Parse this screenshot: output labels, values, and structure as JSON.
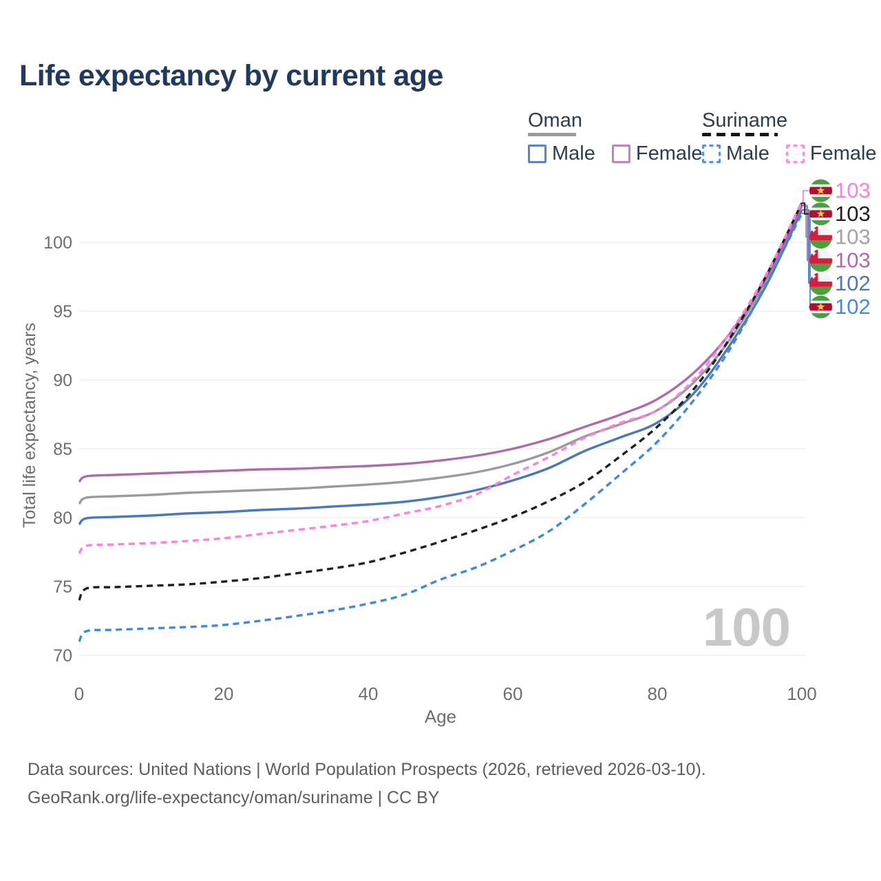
{
  "title": "Life expectancy by current age",
  "watermark": "100",
  "legend": {
    "groups": [
      {
        "label": "Oman",
        "line_style": "solid",
        "line_color": "#9b9b9b",
        "items": [
          {
            "label": "Male",
            "color": "#5b84c6",
            "style": "solid"
          },
          {
            "label": "Female",
            "color": "#c083bd",
            "style": "solid"
          }
        ]
      },
      {
        "label": "Suriname",
        "line_style": "dashed",
        "line_color": "#161616",
        "items": [
          {
            "label": "Male",
            "color": "#4d93f2",
            "style": "dashed"
          },
          {
            "label": "Female",
            "color": "#ff8ce2",
            "style": "dashed"
          }
        ]
      }
    ]
  },
  "chart_data": {
    "type": "line",
    "title": "Life expectancy by current age",
    "xlabel": "Age",
    "ylabel": "Total life expectancy, years",
    "xlim": [
      0,
      100
    ],
    "ylim": [
      68.5,
      103.5
    ],
    "xticks": [
      0,
      20,
      40,
      60,
      80,
      100
    ],
    "yticks": [
      70,
      75,
      80,
      85,
      90,
      95,
      100
    ],
    "grid": true,
    "legend_position": "top-right",
    "x": [
      0,
      1,
      5,
      10,
      15,
      20,
      25,
      30,
      35,
      40,
      45,
      50,
      55,
      60,
      65,
      70,
      75,
      80,
      85,
      90,
      95,
      100
    ],
    "series": [
      {
        "name": "Oman Both sexes",
        "country": "Oman",
        "sex": "Both",
        "color": "#9b9b9b",
        "dashed": false,
        "flag": "oman",
        "end_label": "103",
        "end_label_color": "#a3a3a3",
        "label_row": 2,
        "values": [
          81.0,
          81.45,
          81.55,
          81.65,
          81.8,
          81.9,
          82.0,
          82.1,
          82.25,
          82.4,
          82.6,
          82.9,
          83.3,
          83.9,
          84.75,
          85.9,
          86.8,
          87.8,
          89.8,
          92.9,
          97.2,
          102.75
        ]
      },
      {
        "name": "Oman Male",
        "country": "Oman",
        "sex": "Male",
        "color": "#4a77bd",
        "dashed": false,
        "flag": "oman",
        "end_label": "102",
        "end_label_color": "#4a77bd",
        "label_row": 4,
        "values": [
          79.5,
          79.95,
          80.05,
          80.15,
          80.3,
          80.4,
          80.55,
          80.65,
          80.8,
          80.95,
          81.15,
          81.5,
          82.0,
          82.7,
          83.6,
          84.85,
          85.85,
          86.9,
          89.0,
          92.5,
          96.8,
          102.35
        ]
      },
      {
        "name": "Oman Female",
        "country": "Oman",
        "sex": "Female",
        "color": "#ad6bae",
        "dashed": false,
        "flag": "oman",
        "end_label": "103",
        "end_label_color": "#b168ad",
        "label_row": 3,
        "values": [
          82.6,
          83.0,
          83.1,
          83.2,
          83.3,
          83.4,
          83.5,
          83.55,
          83.65,
          83.75,
          83.9,
          84.15,
          84.5,
          85.0,
          85.7,
          86.6,
          87.5,
          88.6,
          90.5,
          93.35,
          97.35,
          102.65
        ]
      },
      {
        "name": "Suriname Male",
        "country": "Suriname",
        "sex": "Male",
        "color": "#3c86f0",
        "dashed": true,
        "flag": "suriname",
        "end_label": "102",
        "end_label_color": "#4189f0",
        "label_row": 5,
        "values": [
          71.0,
          71.75,
          71.85,
          71.95,
          72.05,
          72.2,
          72.5,
          72.85,
          73.25,
          73.75,
          74.4,
          75.5,
          76.4,
          77.6,
          79.0,
          81.0,
          83.2,
          85.5,
          88.5,
          92.2,
          96.9,
          102.1
        ]
      },
      {
        "name": "Suriname Both sexes",
        "country": "Suriname",
        "sex": "Both",
        "color": "#202020",
        "dashed": true,
        "flag": "suriname",
        "end_label": "103",
        "end_label_color": "#202020",
        "label_row": 1,
        "values": [
          74.0,
          74.85,
          74.95,
          75.05,
          75.15,
          75.35,
          75.6,
          75.95,
          76.3,
          76.75,
          77.45,
          78.25,
          79.1,
          80.05,
          81.2,
          82.6,
          84.5,
          86.6,
          89.3,
          93.0,
          97.5,
          102.85
        ]
      },
      {
        "name": "Suriname Female",
        "country": "Suriname",
        "sex": "Female",
        "color": "#ff80df",
        "dashed": true,
        "flag": "suriname",
        "end_label": "103",
        "end_label_color": "#ff7ee0",
        "label_row": 0,
        "values": [
          77.4,
          77.95,
          78.05,
          78.15,
          78.3,
          78.5,
          78.8,
          79.1,
          79.4,
          79.75,
          80.3,
          80.85,
          81.7,
          83.1,
          84.4,
          85.8,
          86.9,
          87.8,
          90.0,
          93.4,
          97.6,
          102.95
        ]
      }
    ]
  },
  "footer": {
    "line1": "Data sources: United Nations | World Population Prospects (2026, retrieved 2026-03-10).",
    "line2": "GeoRank.org/life-expectancy/oman/suriname | CC BY"
  }
}
